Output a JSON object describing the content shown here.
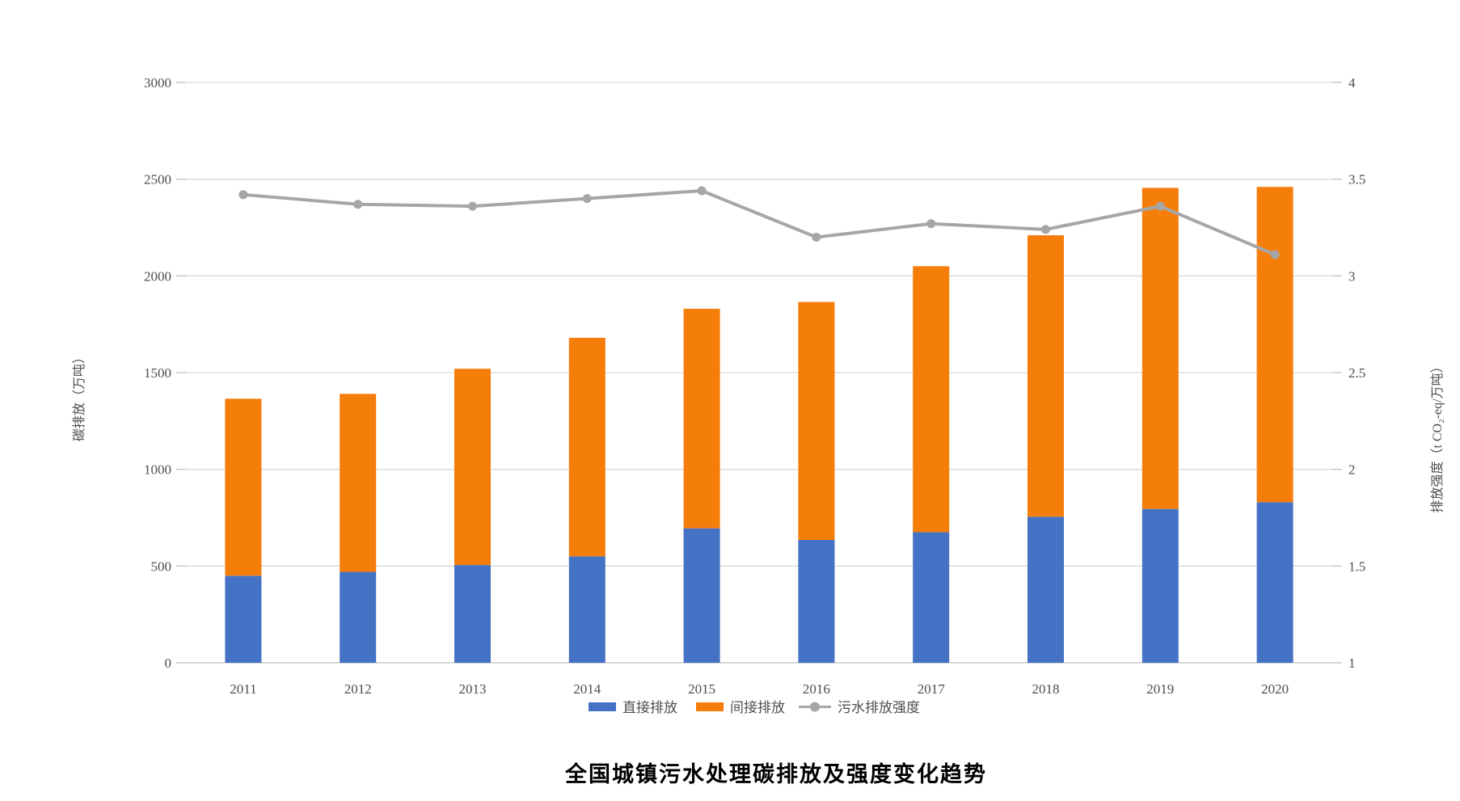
{
  "title": "全国城镇污水处理碳排放及强度变化趋势",
  "colors": {
    "direct_bar": "#4472C4",
    "indirect_bar": "#F57D0A",
    "intensity_line": "#A6A6A6",
    "gridline": "#D9D9D9",
    "axis_baseline": "#BFBFBF",
    "tick_text": "#4d4d4d",
    "background": "#FFFFFF"
  },
  "chart_data": {
    "type": "bar",
    "subtype": "stacked-bars-with-line-overlay",
    "title": "全国城镇污水处理碳排放及强度变化趋势",
    "categories": [
      "2011",
      "2012",
      "2013",
      "2014",
      "2015",
      "2016",
      "2017",
      "2018",
      "2019",
      "2020"
    ],
    "series": [
      {
        "name": "直接排放",
        "type": "bar",
        "stack": "emissions",
        "axis": "left",
        "color": "#4472C4",
        "values": [
          450,
          470,
          505,
          550,
          695,
          635,
          675,
          755,
          795,
          830
        ]
      },
      {
        "name": "间接排放",
        "type": "bar",
        "stack": "emissions",
        "axis": "left",
        "color": "#F57D0A",
        "values": [
          915,
          920,
          1015,
          1130,
          1135,
          1230,
          1375,
          1455,
          1660,
          1630
        ]
      },
      {
        "name": "污水排放强度",
        "type": "line",
        "axis": "right",
        "color": "#A6A6A6",
        "marker": "circle",
        "values": [
          3.42,
          3.37,
          3.36,
          3.4,
          3.44,
          3.2,
          3.27,
          3.24,
          3.36,
          3.11
        ]
      }
    ],
    "stacked_totals": [
      1365,
      1390,
      1520,
      1680,
      1830,
      1865,
      2050,
      2210,
      2455,
      2460
    ],
    "left_axis": {
      "label": "碳排放（万吨）",
      "min": 0,
      "max": 3000,
      "step": 500,
      "tick_values": [
        0,
        500,
        1000,
        1500,
        2000,
        2500,
        3000
      ],
      "tick_labels": [
        "0",
        "500",
        "1000",
        "1500",
        "2000",
        "2500",
        "3000"
      ]
    },
    "right_axis": {
      "label": "排放强度（t CO₂-eq/万吨）",
      "min": 1,
      "max": 4,
      "step": 0.5,
      "tick_values": [
        1,
        1.5,
        2,
        2.5,
        3,
        3.5,
        4
      ],
      "tick_labels": [
        "1",
        "1.5",
        "2",
        "2.5",
        "3",
        "3.5",
        "4"
      ]
    },
    "grid": true,
    "legend_position": "bottom"
  }
}
